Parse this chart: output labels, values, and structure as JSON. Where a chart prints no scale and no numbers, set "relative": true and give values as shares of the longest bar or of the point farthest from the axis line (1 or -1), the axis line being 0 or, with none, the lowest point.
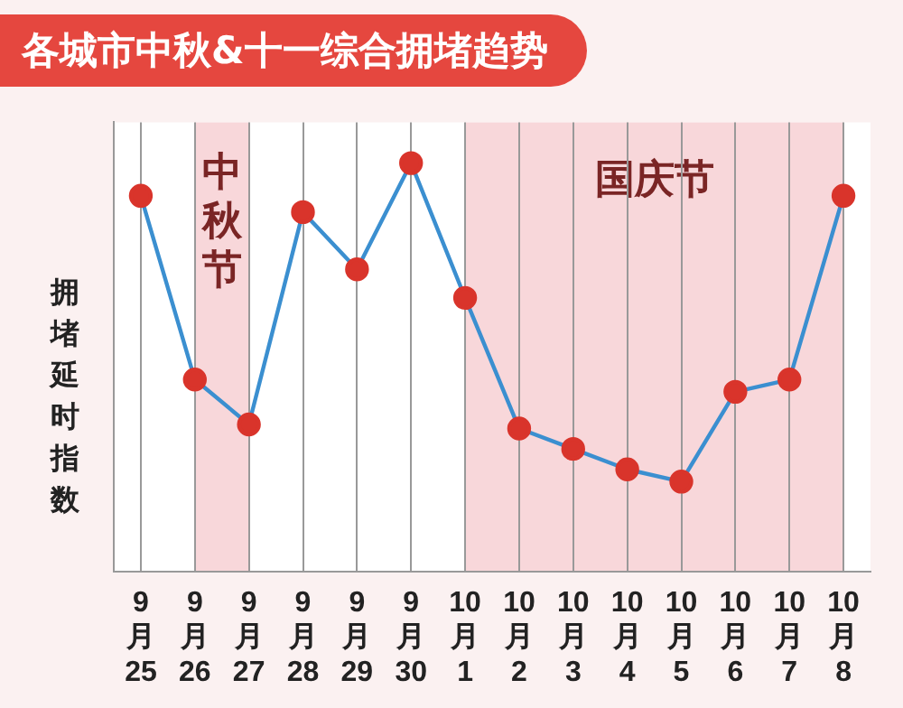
{
  "chart_data": {
    "type": "line",
    "title": "各城市中秋&十一综合拥堵趋势",
    "ylabel": "拥堵延时指数",
    "relative": true,
    "categories": [
      "9月25",
      "9月26",
      "9月27",
      "9月28",
      "9月29",
      "9月30",
      "10月1",
      "10月2",
      "10月3",
      "10月4",
      "10月5",
      "10月6",
      "10月7",
      "10月8"
    ],
    "series": [
      {
        "color": "#3b8fd0",
        "values": [
          0.92,
          0.47,
          0.36,
          0.88,
          0.74,
          1,
          0.67,
          0.35,
          0.3,
          0.25,
          0.22,
          0.44,
          0.47,
          0.92
        ]
      }
    ],
    "marker": "circle",
    "grid": "x",
    "legend": false,
    "bands": [
      {
        "axis": "x",
        "from": "9月26",
        "to": "9月27",
        "label": "中秋节",
        "color": "#f8d7da"
      },
      {
        "axis": "x",
        "from": "10月1",
        "to": "10月8",
        "label": "国庆节",
        "color": "#f8d7da"
      }
    ]
  }
}
